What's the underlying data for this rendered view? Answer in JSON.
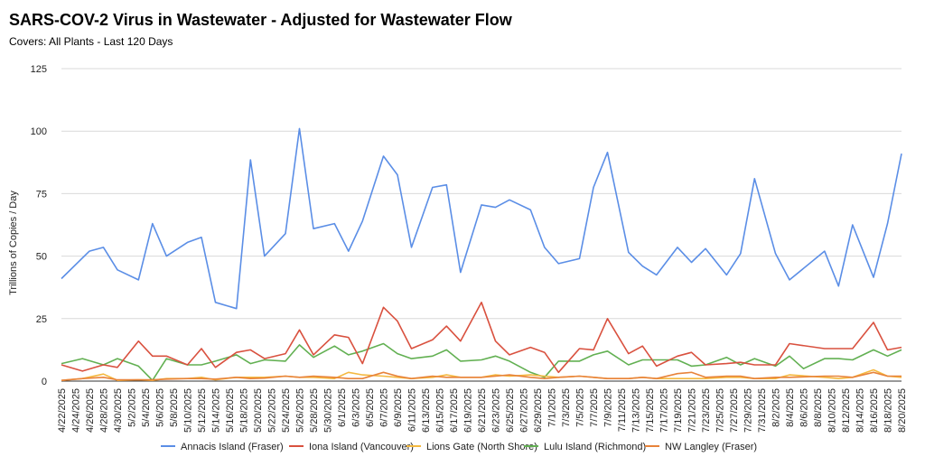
{
  "chart_data": {
    "type": "line",
    "title": "SARS-COV-2 Virus in Wastewater - Adjusted for Wastewater Flow",
    "subtitle": "Covers: All Plants - Last 120 Days",
    "xlabel": "",
    "ylabel": "Trillions of Copies / Day",
    "ylim": [
      0,
      125
    ],
    "yticks": [
      0,
      25,
      50,
      75,
      100,
      125
    ],
    "grid": "horizontal",
    "legend_position": "bottom",
    "x": [
      "4/22/2025",
      "4/24/2025",
      "4/26/2025",
      "4/28/2025",
      "4/30/2025",
      "5/2/2025",
      "5/4/2025",
      "5/6/2025",
      "5/8/2025",
      "5/10/2025",
      "5/12/2025",
      "5/14/2025",
      "5/16/2025",
      "5/18/2025",
      "5/20/2025",
      "5/22/2025",
      "5/24/2025",
      "5/26/2025",
      "5/28/2025",
      "5/30/2025",
      "6/1/2025",
      "6/3/2025",
      "6/5/2025",
      "6/7/2025",
      "6/9/2025",
      "6/11/2025",
      "6/13/2025",
      "6/15/2025",
      "6/17/2025",
      "6/19/2025",
      "6/21/2025",
      "6/23/2025",
      "6/25/2025",
      "6/27/2025",
      "6/29/2025",
      "7/1/2025",
      "7/3/2025",
      "7/5/2025",
      "7/7/2025",
      "7/9/2025",
      "7/11/2025",
      "7/13/2025",
      "7/15/2025",
      "7/17/2025",
      "7/19/2025",
      "7/21/2025",
      "7/23/2025",
      "7/25/2025",
      "7/27/2025",
      "7/29/2025",
      "7/31/2025",
      "8/2/2025",
      "8/4/2025",
      "8/6/2025",
      "8/8/2025",
      "8/10/2025",
      "8/12/2025",
      "8/14/2025",
      "8/16/2025",
      "8/18/2025",
      "8/20/2025"
    ],
    "series": [
      {
        "name": "Annacis Island (Fraser)",
        "color": "#5b8ee6",
        "points": [
          [
            "4/22/2025",
            41
          ],
          [
            "4/26/2025",
            52
          ],
          [
            "4/28/2025",
            53.5
          ],
          [
            "4/30/2025",
            44.5
          ],
          [
            "5/3/2025",
            40.5
          ],
          [
            "5/5/2025",
            63
          ],
          [
            "5/7/2025",
            50
          ],
          [
            "5/10/2025",
            55.5
          ],
          [
            "5/12/2025",
            57.5
          ],
          [
            "5/14/2025",
            31.5
          ],
          [
            "5/17/2025",
            29
          ],
          [
            "5/19/2025",
            88.5
          ],
          [
            "5/21/2025",
            50
          ],
          [
            "5/24/2025",
            59
          ],
          [
            "5/26/2025",
            101
          ],
          [
            "5/28/2025",
            61
          ],
          [
            "5/31/2025",
            63
          ],
          [
            "6/2/2025",
            52
          ],
          [
            "6/4/2025",
            64
          ],
          [
            "6/7/2025",
            90
          ],
          [
            "6/9/2025",
            82.5
          ],
          [
            "6/11/2025",
            53.5
          ],
          [
            "6/14/2025",
            77.5
          ],
          [
            "6/16/2025",
            78.5
          ],
          [
            "6/18/2025",
            43.5
          ],
          [
            "6/21/2025",
            70.5
          ],
          [
            "6/23/2025",
            69.5
          ],
          [
            "6/25/2025",
            72.5
          ],
          [
            "6/28/2025",
            68.5
          ],
          [
            "6/30/2025",
            53.5
          ],
          [
            "7/2/2025",
            47
          ],
          [
            "7/5/2025",
            49
          ],
          [
            "7/7/2025",
            77.5
          ],
          [
            "7/9/2025",
            91.5
          ],
          [
            "7/12/2025",
            51.5
          ],
          [
            "7/14/2025",
            46
          ],
          [
            "7/16/2025",
            42.5
          ],
          [
            "7/19/2025",
            53.5
          ],
          [
            "7/21/2025",
            47.5
          ],
          [
            "7/23/2025",
            53
          ],
          [
            "7/26/2025",
            42.5
          ],
          [
            "7/28/2025",
            51
          ],
          [
            "7/30/2025",
            81
          ],
          [
            "8/2/2025",
            51
          ],
          [
            "8/4/2025",
            40.5
          ],
          [
            "8/9/2025",
            52
          ],
          [
            "8/11/2025",
            38
          ],
          [
            "8/13/2025",
            62.5
          ],
          [
            "8/16/2025",
            41.5
          ],
          [
            "8/18/2025",
            63
          ],
          [
            "8/20/2025",
            91
          ]
        ]
      },
      {
        "name": "Iona Island (Vancouver)",
        "color": "#d9513f",
        "points": [
          [
            "4/22/2025",
            6.5
          ],
          [
            "4/25/2025",
            4
          ],
          [
            "4/28/2025",
            6.5
          ],
          [
            "4/30/2025",
            5.5
          ],
          [
            "5/3/2025",
            16
          ],
          [
            "5/5/2025",
            10
          ],
          [
            "5/7/2025",
            10
          ],
          [
            "5/10/2025",
            6.5
          ],
          [
            "5/12/2025",
            13
          ],
          [
            "5/14/2025",
            5.5
          ],
          [
            "5/17/2025",
            11.5
          ],
          [
            "5/19/2025",
            12.5
          ],
          [
            "5/21/2025",
            9
          ],
          [
            "5/24/2025",
            11
          ],
          [
            "5/26/2025",
            20.5
          ],
          [
            "5/28/2025",
            10.5
          ],
          [
            "5/31/2025",
            18.5
          ],
          [
            "6/2/2025",
            17.5
          ],
          [
            "6/4/2025",
            7
          ],
          [
            "6/7/2025",
            29.5
          ],
          [
            "6/9/2025",
            24
          ],
          [
            "6/11/2025",
            13
          ],
          [
            "6/14/2025",
            16.5
          ],
          [
            "6/16/2025",
            22
          ],
          [
            "6/18/2025",
            16
          ],
          [
            "6/21/2025",
            31.5
          ],
          [
            "6/23/2025",
            16
          ],
          [
            "6/25/2025",
            10.5
          ],
          [
            "6/28/2025",
            13.5
          ],
          [
            "6/30/2025",
            11.5
          ],
          [
            "7/2/2025",
            3.5
          ],
          [
            "7/5/2025",
            13
          ],
          [
            "7/7/2025",
            12.5
          ],
          [
            "7/9/2025",
            25
          ],
          [
            "7/12/2025",
            11
          ],
          [
            "7/14/2025",
            14
          ],
          [
            "7/16/2025",
            6
          ],
          [
            "7/19/2025",
            10
          ],
          [
            "7/21/2025",
            11.5
          ],
          [
            "7/23/2025",
            6.5
          ],
          [
            "7/26/2025",
            7
          ],
          [
            "7/28/2025",
            7.5
          ],
          [
            "7/30/2025",
            6.5
          ],
          [
            "8/2/2025",
            6.5
          ],
          [
            "8/4/2025",
            15
          ],
          [
            "8/9/2025",
            13
          ],
          [
            "8/11/2025",
            13
          ],
          [
            "8/13/2025",
            13
          ],
          [
            "8/16/2025",
            23.5
          ],
          [
            "8/18/2025",
            12.5
          ],
          [
            "8/20/2025",
            13.5
          ]
        ]
      },
      {
        "name": "Lions Gate (North Shore)",
        "color": "#f4b940",
        "points": [
          [
            "4/22/2025",
            0.3
          ],
          [
            "4/25/2025",
            1
          ],
          [
            "4/28/2025",
            2.8
          ],
          [
            "4/30/2025",
            0.3
          ],
          [
            "5/3/2025",
            0.5
          ],
          [
            "5/5/2025",
            0.3
          ],
          [
            "5/7/2025",
            1
          ],
          [
            "5/10/2025",
            1
          ],
          [
            "5/12/2025",
            1.5
          ],
          [
            "5/14/2025",
            0.5
          ],
          [
            "5/17/2025",
            1.5
          ],
          [
            "5/19/2025",
            1.5
          ],
          [
            "5/21/2025",
            1.5
          ],
          [
            "5/24/2025",
            2
          ],
          [
            "5/26/2025",
            1.5
          ],
          [
            "5/28/2025",
            1.5
          ],
          [
            "5/31/2025",
            1
          ],
          [
            "6/2/2025",
            3.5
          ],
          [
            "6/4/2025",
            2.5
          ],
          [
            "6/7/2025",
            2
          ],
          [
            "6/9/2025",
            1.5
          ],
          [
            "6/11/2025",
            1
          ],
          [
            "6/14/2025",
            1.5
          ],
          [
            "6/16/2025",
            2.5
          ],
          [
            "6/18/2025",
            1.5
          ],
          [
            "6/21/2025",
            1.5
          ],
          [
            "6/23/2025",
            2.5
          ],
          [
            "6/25/2025",
            2
          ],
          [
            "6/28/2025",
            2.5
          ],
          [
            "6/30/2025",
            2
          ],
          [
            "7/2/2025",
            1.5
          ],
          [
            "7/5/2025",
            2
          ],
          [
            "7/7/2025",
            1.5
          ],
          [
            "7/9/2025",
            1
          ],
          [
            "7/12/2025",
            1
          ],
          [
            "7/14/2025",
            1.5
          ],
          [
            "7/16/2025",
            1
          ],
          [
            "7/19/2025",
            1
          ],
          [
            "7/21/2025",
            1
          ],
          [
            "7/23/2025",
            1
          ],
          [
            "7/26/2025",
            1.5
          ],
          [
            "7/28/2025",
            1.5
          ],
          [
            "7/30/2025",
            1
          ],
          [
            "8/2/2025",
            1
          ],
          [
            "8/4/2025",
            2.5
          ],
          [
            "8/9/2025",
            1.5
          ],
          [
            "8/11/2025",
            1
          ],
          [
            "8/13/2025",
            1.5
          ],
          [
            "8/16/2025",
            4.5
          ],
          [
            "8/18/2025",
            2
          ],
          [
            "8/20/2025",
            1.5
          ]
        ]
      },
      {
        "name": "Lulu Island (Richmond)",
        "color": "#62b052",
        "points": [
          [
            "4/22/2025",
            7
          ],
          [
            "4/25/2025",
            9
          ],
          [
            "4/28/2025",
            6.5
          ],
          [
            "4/30/2025",
            9
          ],
          [
            "5/3/2025",
            6
          ],
          [
            "5/5/2025",
            0.3
          ],
          [
            "5/7/2025",
            9
          ],
          [
            "5/10/2025",
            6.5
          ],
          [
            "5/12/2025",
            6.5
          ],
          [
            "5/14/2025",
            8
          ],
          [
            "5/17/2025",
            10.5
          ],
          [
            "5/19/2025",
            7
          ],
          [
            "5/21/2025",
            8.5
          ],
          [
            "5/24/2025",
            8
          ],
          [
            "5/26/2025",
            14.5
          ],
          [
            "5/28/2025",
            9.5
          ],
          [
            "5/31/2025",
            14
          ],
          [
            "6/2/2025",
            10.5
          ],
          [
            "6/4/2025",
            12
          ],
          [
            "6/7/2025",
            15
          ],
          [
            "6/9/2025",
            11
          ],
          [
            "6/11/2025",
            9
          ],
          [
            "6/14/2025",
            10
          ],
          [
            "6/16/2025",
            12.5
          ],
          [
            "6/18/2025",
            8
          ],
          [
            "6/21/2025",
            8.5
          ],
          [
            "6/23/2025",
            10
          ],
          [
            "6/25/2025",
            8
          ],
          [
            "6/28/2025",
            3.5
          ],
          [
            "6/30/2025",
            1.5
          ],
          [
            "7/2/2025",
            8
          ],
          [
            "7/5/2025",
            8
          ],
          [
            "7/7/2025",
            10.5
          ],
          [
            "7/9/2025",
            12
          ],
          [
            "7/12/2025",
            6.5
          ],
          [
            "7/14/2025",
            8.5
          ],
          [
            "7/16/2025",
            8.5
          ],
          [
            "7/19/2025",
            8.5
          ],
          [
            "7/21/2025",
            6
          ],
          [
            "7/23/2025",
            6.5
          ],
          [
            "7/26/2025",
            9.5
          ],
          [
            "7/28/2025",
            6.5
          ],
          [
            "7/30/2025",
            9
          ],
          [
            "8/2/2025",
            6
          ],
          [
            "8/4/2025",
            10
          ],
          [
            "8/6/2025",
            5
          ],
          [
            "8/9/2025",
            9
          ],
          [
            "8/11/2025",
            9
          ],
          [
            "8/13/2025",
            8.5
          ],
          [
            "8/16/2025",
            12.5
          ],
          [
            "8/18/2025",
            10
          ],
          [
            "8/20/2025",
            12.5
          ]
        ]
      },
      {
        "name": "NW Langley (Fraser)",
        "color": "#e8833a",
        "points": [
          [
            "4/22/2025",
            0.3
          ],
          [
            "4/25/2025",
            1
          ],
          [
            "4/28/2025",
            1.5
          ],
          [
            "4/30/2025",
            0.5
          ],
          [
            "5/3/2025",
            0.5
          ],
          [
            "5/5/2025",
            0.5
          ],
          [
            "5/7/2025",
            0.8
          ],
          [
            "5/10/2025",
            1
          ],
          [
            "5/12/2025",
            1
          ],
          [
            "5/14/2025",
            0.8
          ],
          [
            "5/17/2025",
            1.5
          ],
          [
            "5/19/2025",
            1
          ],
          [
            "5/21/2025",
            1.2
          ],
          [
            "5/24/2025",
            2
          ],
          [
            "5/26/2025",
            1.5
          ],
          [
            "5/28/2025",
            2
          ],
          [
            "5/31/2025",
            1.5
          ],
          [
            "6/2/2025",
            1
          ],
          [
            "6/4/2025",
            1
          ],
          [
            "6/7/2025",
            3.5
          ],
          [
            "6/9/2025",
            2
          ],
          [
            "6/11/2025",
            1
          ],
          [
            "6/14/2025",
            2
          ],
          [
            "6/16/2025",
            1.5
          ],
          [
            "6/18/2025",
            1.5
          ],
          [
            "6/21/2025",
            1.5
          ],
          [
            "6/23/2025",
            2
          ],
          [
            "6/25/2025",
            2.5
          ],
          [
            "6/28/2025",
            1.5
          ],
          [
            "6/30/2025",
            1
          ],
          [
            "7/2/2025",
            1.5
          ],
          [
            "7/5/2025",
            2
          ],
          [
            "7/7/2025",
            1.5
          ],
          [
            "7/9/2025",
            1
          ],
          [
            "7/12/2025",
            1
          ],
          [
            "7/14/2025",
            1.5
          ],
          [
            "7/16/2025",
            1
          ],
          [
            "7/19/2025",
            3
          ],
          [
            "7/21/2025",
            3.5
          ],
          [
            "7/23/2025",
            1.5
          ],
          [
            "7/26/2025",
            2
          ],
          [
            "7/28/2025",
            2
          ],
          [
            "7/30/2025",
            1
          ],
          [
            "8/2/2025",
            1.5
          ],
          [
            "8/4/2025",
            1.5
          ],
          [
            "8/9/2025",
            2
          ],
          [
            "8/11/2025",
            2
          ],
          [
            "8/13/2025",
            1.5
          ],
          [
            "8/16/2025",
            3.5
          ],
          [
            "8/18/2025",
            2
          ],
          [
            "8/20/2025",
            2
          ]
        ]
      }
    ]
  }
}
